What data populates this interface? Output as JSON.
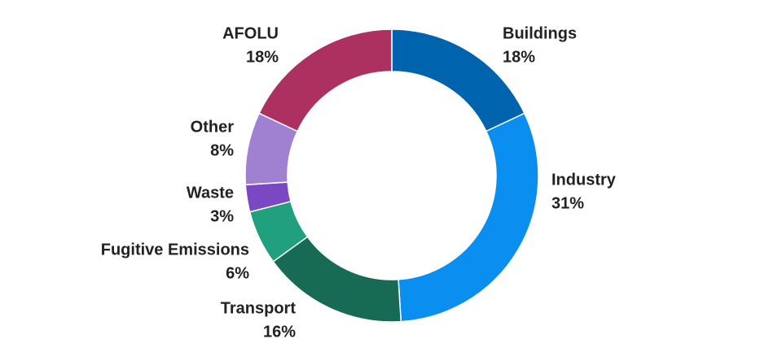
{
  "chart_data": {
    "type": "donut",
    "categories": [
      "Buildings",
      "Industry",
      "Transport",
      "Fugitive Emissions",
      "Waste",
      "Other",
      "AFOLU"
    ],
    "values": [
      18,
      31,
      16,
      6,
      3,
      8,
      18
    ],
    "value_labels": [
      "18%",
      "31%",
      "16%",
      "6%",
      "3%",
      "8%",
      "18%"
    ],
    "colors": [
      "#0063ad",
      "#0a8ef0",
      "#176b55",
      "#20a07e",
      "#7b48c4",
      "#a080d0",
      "#ad3160"
    ]
  }
}
